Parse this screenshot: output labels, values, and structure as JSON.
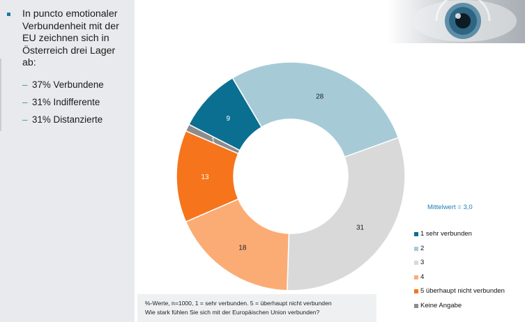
{
  "summary": {
    "main": "In puncto emotionaler Verbundenheit mit der EU zeichnen sich in Österreich drei Lager ab:",
    "groups": [
      "37% Verbundene",
      "31% Indifferente",
      "31% Distanzierte"
    ]
  },
  "mean_label": "Mittelwert = 3,0",
  "footnote": {
    "line1": "%-Werte, n=1000, 1 = sehr verbunden. 5 = überhaupt nicht verbunden",
    "line2": "Wie stark fühlen Sie sich mit der Europäischen Union verbunden?"
  },
  "chart_data": {
    "type": "pie",
    "subtype": "donut",
    "title": "",
    "categories": [
      "1 sehr verbunden",
      "2",
      "3",
      "4",
      "5 überhaupt nicht verbunden",
      "Keine Angabe"
    ],
    "values": [
      9,
      28,
      31,
      18,
      13,
      1
    ],
    "value_labels": [
      "9",
      "28",
      "31",
      "18",
      "13",
      "1"
    ],
    "colors": [
      "#0b6f91",
      "#a6cbd7",
      "#d9d9d9",
      "#fbac75",
      "#f6741c",
      "#8c8c8c"
    ],
    "legend_placement": "right",
    "start": "top-left (clockwise)"
  },
  "legend": [
    {
      "label": "1  sehr verbunden",
      "color": "#0b6f91"
    },
    {
      "label": "2",
      "color": "#a6cbd7"
    },
    {
      "label": "3",
      "color": "#d9d9d9"
    },
    {
      "label": "4",
      "color": "#fbac75"
    },
    {
      "label": "5 überhaupt nicht verbunden",
      "color": "#f6741c"
    },
    {
      "label": "Keine Angabe",
      "color": "#8c8c8c"
    }
  ]
}
